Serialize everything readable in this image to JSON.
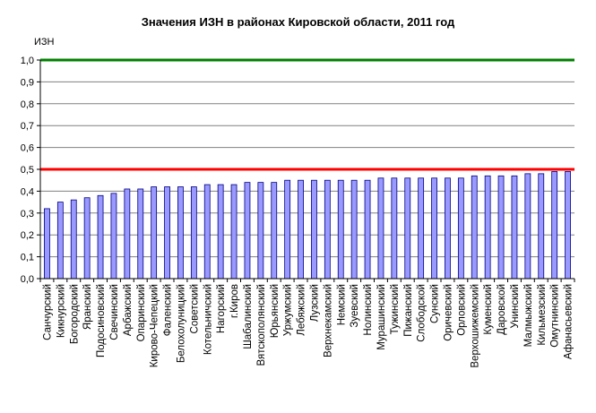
{
  "chart_data": {
    "type": "bar",
    "title": "Значения ИЗН в районах Кировской области, 2011 год",
    "ylabel": "ИЗН",
    "xlabel": "",
    "ylim": [
      0,
      1.0
    ],
    "ytick_labels": [
      "0,0",
      "0,1",
      "0,2",
      "0,3",
      "0,4",
      "0,5",
      "0,6",
      "0,7",
      "0,8",
      "0,9",
      "1,0"
    ],
    "grid": true,
    "colors": {
      "bar": "#9999ff",
      "bar_stroke": "#000080",
      "line_upper": "#008000",
      "line_middle": "#ff0000",
      "grid": "#808080"
    },
    "reference_lines": [
      {
        "value": 1.0,
        "color": "#008000"
      },
      {
        "value": 0.5,
        "color": "#ff0000"
      }
    ],
    "categories": [
      "Санчурский",
      "Кикнурский",
      "Богородский",
      "Яранский",
      "Подосиновский",
      "Свечинский",
      "Арбажский",
      "Опаринский",
      "Кирово-Чепецкий",
      "Фаленский",
      "Белохолуницкий",
      "Советский",
      "Котельничский",
      "Нагорский",
      "г.Киров",
      "Шабалинский",
      "Вятскополянский",
      "Юрьянский",
      "Уржумский",
      "Лебяжский",
      "Лузский",
      "Верхнекамский",
      "Немский",
      "Зуевский",
      "Нолинский",
      "Мурашинский",
      "Тужинский",
      "Пижанский",
      "Слободской",
      "Сунский",
      "Оричевский",
      "Орловский",
      "Верхошижемский",
      "Куменский",
      "Даровской",
      "Унинский",
      "Малмыжский",
      "Кильмезский",
      "Омутнинский",
      "Афанасьевский"
    ],
    "values": [
      0.32,
      0.35,
      0.36,
      0.37,
      0.38,
      0.39,
      0.41,
      0.41,
      0.42,
      0.42,
      0.42,
      0.42,
      0.43,
      0.43,
      0.43,
      0.44,
      0.44,
      0.44,
      0.45,
      0.45,
      0.45,
      0.45,
      0.45,
      0.45,
      0.45,
      0.46,
      0.46,
      0.46,
      0.46,
      0.46,
      0.46,
      0.46,
      0.47,
      0.47,
      0.47,
      0.47,
      0.48,
      0.48,
      0.49,
      0.49
    ]
  }
}
